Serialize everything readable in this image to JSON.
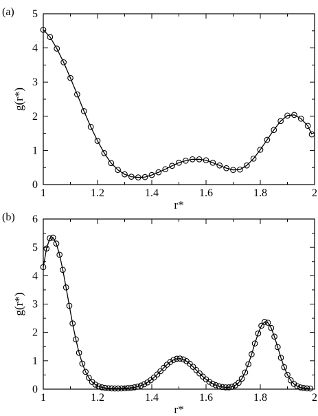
{
  "chart_data": [
    {
      "type": "line",
      "panel_label": "(a)",
      "xlabel": "r*",
      "ylabel": "g(r*)",
      "xlim": [
        1.0,
        2.0
      ],
      "ylim": [
        0,
        5
      ],
      "xticks": [
        "1",
        "1.2",
        "1.4",
        "1.6",
        "1.8",
        "2"
      ],
      "yticks": [
        "0",
        "1",
        "2",
        "3",
        "4",
        "5"
      ],
      "grid": false,
      "series": [
        {
          "markers": "open-circle",
          "x": [
            1.0,
            1.025,
            1.05,
            1.075,
            1.1,
            1.125,
            1.15,
            1.175,
            1.2,
            1.225,
            1.25,
            1.275,
            1.3,
            1.325,
            1.35,
            1.375,
            1.4,
            1.425,
            1.45,
            1.475,
            1.5,
            1.525,
            1.55,
            1.575,
            1.6,
            1.625,
            1.65,
            1.675,
            1.7,
            1.725,
            1.75,
            1.775,
            1.8,
            1.825,
            1.85,
            1.875,
            1.9,
            1.925,
            1.95,
            1.975
          ],
          "y": [
            4.53,
            4.32,
            3.98,
            3.58,
            3.12,
            2.64,
            2.15,
            1.69,
            1.28,
            0.92,
            0.63,
            0.43,
            0.3,
            0.23,
            0.21,
            0.22,
            0.28,
            0.36,
            0.45,
            0.55,
            0.64,
            0.7,
            0.74,
            0.74,
            0.71,
            0.64,
            0.56,
            0.48,
            0.43,
            0.44,
            0.56,
            0.76,
            1.02,
            1.31,
            1.6,
            1.86,
            2.02,
            2.04,
            1.93,
            1.72
          ]
        }
      ],
      "end_point": {
        "x": 1.99,
        "y": 1.47
      }
    },
    {
      "type": "line",
      "panel_label": "(b)",
      "xlabel": "r*",
      "ylabel": "g(r*)",
      "xlim": [
        1.0,
        2.0
      ],
      "ylim": [
        0,
        6
      ],
      "xticks": [
        "1",
        "1.2",
        "1.4",
        "1.6",
        "1.8",
        "2"
      ],
      "yticks": [
        "0",
        "1",
        "2",
        "3",
        "4",
        "5",
        "6"
      ],
      "grid": false,
      "series": [
        {
          "markers": "open-circle",
          "gaussian_peaks": [
            {
              "center": 1.03,
              "height": 5.35,
              "width_left": 0.045,
              "width_right": 0.06
            },
            {
              "center": 1.5,
              "height": 1.06,
              "width_left": 0.065,
              "width_right": 0.065
            },
            {
              "center": 1.82,
              "height": 2.36,
              "width_left": 0.045,
              "width_right": 0.045
            }
          ],
          "baseline": 0.02,
          "x_start": 1.0,
          "x_end": 1.995,
          "x_step": 0.012
        }
      ]
    }
  ]
}
